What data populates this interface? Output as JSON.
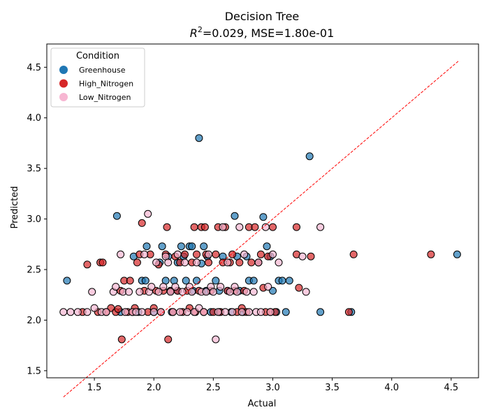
{
  "chart_data": {
    "type": "scatter",
    "title": "Decision Tree",
    "subtitle_parts": {
      "r_symbol": "R",
      "r_exp": "2",
      "rest": "=0.029, MSE=1.80e-01"
    },
    "xlabel": "Actual",
    "ylabel": "Predicted",
    "xlim": [
      1.1,
      4.73
    ],
    "ylim": [
      1.43,
      4.73
    ],
    "xticks": [
      1.5,
      2.0,
      2.5,
      3.0,
      3.5,
      4.0,
      4.5
    ],
    "xtick_labels": [
      "1.5",
      "2.0",
      "2.5",
      "3.0",
      "3.5",
      "4.0",
      "4.5"
    ],
    "yticks": [
      1.5,
      2.0,
      2.5,
      3.0,
      3.5,
      4.0,
      4.5
    ],
    "ytick_labels": [
      "1.5",
      "2.0",
      "2.5",
      "3.0",
      "3.5",
      "4.0",
      "4.5"
    ],
    "grid": false,
    "legend": {
      "title": "Condition",
      "placement": "upper left"
    },
    "reference_line": {
      "x": [
        1.24,
        4.56
      ],
      "y": [
        1.24,
        4.56
      ],
      "color": "#ff0000",
      "style": "dashed"
    },
    "series": [
      {
        "name": "Greenhouse",
        "color": "#1f77b4",
        "points": [
          [
            1.27,
            2.39
          ],
          [
            1.72,
            2.08
          ],
          [
            1.83,
            2.63
          ],
          [
            1.87,
            2.08
          ],
          [
            1.9,
            2.39
          ],
          [
            1.93,
            2.39
          ],
          [
            1.94,
            2.73
          ],
          [
            2.0,
            2.08
          ],
          [
            2.05,
            2.57
          ],
          [
            2.07,
            2.73
          ],
          [
            2.1,
            2.39
          ],
          [
            2.12,
            2.63
          ],
          [
            2.14,
            2.29
          ],
          [
            2.17,
            2.39
          ],
          [
            2.2,
            2.57
          ],
          [
            2.23,
            2.73
          ],
          [
            2.25,
            2.63
          ],
          [
            2.27,
            2.39
          ],
          [
            2.3,
            2.73
          ],
          [
            2.32,
            2.73
          ],
          [
            2.33,
            2.29
          ],
          [
            2.36,
            2.39
          ],
          [
            2.38,
            3.8
          ],
          [
            2.4,
            2.56
          ],
          [
            2.42,
            2.73
          ],
          [
            2.44,
            2.29
          ],
          [
            2.45,
            2.63
          ],
          [
            2.48,
            2.08
          ],
          [
            2.52,
            2.39
          ],
          [
            2.55,
            2.29
          ],
          [
            2.58,
            2.63
          ],
          [
            2.62,
            2.29
          ],
          [
            2.65,
            2.08
          ],
          [
            2.68,
            3.03
          ],
          [
            2.7,
            2.63
          ],
          [
            2.72,
            2.29
          ],
          [
            2.75,
            2.08
          ],
          [
            2.78,
            2.63
          ],
          [
            2.8,
            2.39
          ],
          [
            2.84,
            2.39
          ],
          [
            2.88,
            2.57
          ],
          [
            2.92,
            3.02
          ],
          [
            2.95,
            2.73
          ],
          [
            2.98,
            2.63
          ],
          [
            3.0,
            2.29
          ],
          [
            3.03,
            2.08
          ],
          [
            3.05,
            2.39
          ],
          [
            3.08,
            2.39
          ],
          [
            3.11,
            2.08
          ],
          [
            3.14,
            2.39
          ],
          [
            3.31,
            3.62
          ],
          [
            3.4,
            2.08
          ],
          [
            3.66,
            2.08
          ],
          [
            4.55,
            2.65
          ],
          [
            1.69,
            3.03
          ],
          [
            2.15,
            2.08
          ],
          [
            2.55,
            2.08
          ],
          [
            2.2,
            2.29
          ]
        ]
      },
      {
        "name": "High_Nitrogen",
        "color": "#d62728",
        "points": [
          [
            1.4,
            2.08
          ],
          [
            1.44,
            2.55
          ],
          [
            1.53,
            2.08
          ],
          [
            1.55,
            2.57
          ],
          [
            1.57,
            2.57
          ],
          [
            1.6,
            2.08
          ],
          [
            1.64,
            2.12
          ],
          [
            1.68,
            2.08
          ],
          [
            1.7,
            2.11
          ],
          [
            1.72,
            2.29
          ],
          [
            1.73,
            1.81
          ],
          [
            1.75,
            2.39
          ],
          [
            1.78,
            2.08
          ],
          [
            1.8,
            2.39
          ],
          [
            1.82,
            2.08
          ],
          [
            1.84,
            2.12
          ],
          [
            1.86,
            2.57
          ],
          [
            1.88,
            2.65
          ],
          [
            1.9,
            2.96
          ],
          [
            1.92,
            2.29
          ],
          [
            1.95,
            2.08
          ],
          [
            1.97,
            2.65
          ],
          [
            2.0,
            2.12
          ],
          [
            2.02,
            2.29
          ],
          [
            2.04,
            2.55
          ],
          [
            2.06,
            2.08
          ],
          [
            2.08,
            2.29
          ],
          [
            2.1,
            2.65
          ],
          [
            2.11,
            2.92
          ],
          [
            2.12,
            1.81
          ],
          [
            2.14,
            2.29
          ],
          [
            2.16,
            2.08
          ],
          [
            2.18,
            2.63
          ],
          [
            2.2,
            2.29
          ],
          [
            2.22,
            2.57
          ],
          [
            2.24,
            2.08
          ],
          [
            2.26,
            2.65
          ],
          [
            2.28,
            2.29
          ],
          [
            2.3,
            2.12
          ],
          [
            2.32,
            2.57
          ],
          [
            2.34,
            2.92
          ],
          [
            2.35,
            2.08
          ],
          [
            2.36,
            2.65
          ],
          [
            2.38,
            2.29
          ],
          [
            2.4,
            2.92
          ],
          [
            2.42,
            2.08
          ],
          [
            2.43,
            2.92
          ],
          [
            2.44,
            2.65
          ],
          [
            2.46,
            2.57
          ],
          [
            2.48,
            2.29
          ],
          [
            2.5,
            2.08
          ],
          [
            2.52,
            2.65
          ],
          [
            2.54,
            2.92
          ],
          [
            2.56,
            2.08
          ],
          [
            2.58,
            2.57
          ],
          [
            2.6,
            2.92
          ],
          [
            2.62,
            2.29
          ],
          [
            2.64,
            2.57
          ],
          [
            2.66,
            2.65
          ],
          [
            2.68,
            2.29
          ],
          [
            2.7,
            2.08
          ],
          [
            2.72,
            2.57
          ],
          [
            2.74,
            2.12
          ],
          [
            2.76,
            2.29
          ],
          [
            2.78,
            2.08
          ],
          [
            2.8,
            2.92
          ],
          [
            2.82,
            2.57
          ],
          [
            2.85,
            2.92
          ],
          [
            2.88,
            2.57
          ],
          [
            2.9,
            2.65
          ],
          [
            2.92,
            2.32
          ],
          [
            2.94,
            2.08
          ],
          [
            2.96,
            2.63
          ],
          [
            2.98,
            2.08
          ],
          [
            3.0,
            2.92
          ],
          [
            3.02,
            2.08
          ],
          [
            3.2,
            2.92
          ],
          [
            3.2,
            2.65
          ],
          [
            3.22,
            2.32
          ],
          [
            3.32,
            2.63
          ],
          [
            3.64,
            2.08
          ],
          [
            3.68,
            2.65
          ],
          [
            4.33,
            2.65
          ]
        ]
      },
      {
        "name": "Low_Nitrogen",
        "color": "#f7b6d2",
        "points": [
          [
            1.24,
            2.08
          ],
          [
            1.3,
            2.08
          ],
          [
            1.36,
            2.08
          ],
          [
            1.44,
            2.08
          ],
          [
            1.48,
            2.28
          ],
          [
            1.5,
            2.12
          ],
          [
            1.56,
            2.08
          ],
          [
            1.6,
            2.08
          ],
          [
            1.66,
            2.28
          ],
          [
            1.68,
            2.33
          ],
          [
            1.72,
            2.65
          ],
          [
            1.74,
            2.28
          ],
          [
            1.76,
            2.08
          ],
          [
            1.79,
            2.28
          ],
          [
            1.82,
            2.08
          ],
          [
            1.85,
            2.08
          ],
          [
            1.88,
            2.28
          ],
          [
            1.9,
            2.08
          ],
          [
            1.92,
            2.65
          ],
          [
            1.95,
            3.05
          ],
          [
            1.96,
            2.28
          ],
          [
            1.98,
            2.33
          ],
          [
            2.0,
            2.08
          ],
          [
            2.02,
            2.57
          ],
          [
            2.04,
            2.28
          ],
          [
            2.06,
            2.08
          ],
          [
            2.08,
            2.33
          ],
          [
            2.1,
            2.63
          ],
          [
            2.12,
            2.57
          ],
          [
            2.14,
            2.28
          ],
          [
            2.16,
            2.08
          ],
          [
            2.18,
            2.33
          ],
          [
            2.2,
            2.65
          ],
          [
            2.22,
            2.08
          ],
          [
            2.24,
            2.28
          ],
          [
            2.26,
            2.57
          ],
          [
            2.28,
            2.08
          ],
          [
            2.3,
            2.33
          ],
          [
            2.32,
            2.28
          ],
          [
            2.34,
            2.08
          ],
          [
            2.36,
            2.57
          ],
          [
            2.38,
            2.12
          ],
          [
            2.4,
            2.28
          ],
          [
            2.42,
            2.08
          ],
          [
            2.44,
            2.28
          ],
          [
            2.46,
            2.65
          ],
          [
            2.48,
            2.33
          ],
          [
            2.5,
            2.28
          ],
          [
            2.52,
            1.81
          ],
          [
            2.54,
            2.08
          ],
          [
            2.56,
            2.33
          ],
          [
            2.58,
            2.92
          ],
          [
            2.6,
            2.08
          ],
          [
            2.62,
            2.57
          ],
          [
            2.64,
            2.28
          ],
          [
            2.66,
            2.08
          ],
          [
            2.68,
            2.33
          ],
          [
            2.7,
            2.28
          ],
          [
            2.72,
            2.92
          ],
          [
            2.74,
            2.08
          ],
          [
            2.76,
            2.65
          ],
          [
            2.78,
            2.28
          ],
          [
            2.8,
            2.08
          ],
          [
            2.84,
            2.28
          ],
          [
            2.86,
            2.08
          ],
          [
            2.88,
            2.57
          ],
          [
            2.9,
            2.08
          ],
          [
            2.94,
            2.92
          ],
          [
            2.96,
            2.33
          ],
          [
            2.98,
            2.08
          ],
          [
            3.0,
            2.65
          ],
          [
            3.05,
            2.57
          ],
          [
            3.25,
            2.63
          ],
          [
            3.28,
            2.28
          ],
          [
            3.4,
            2.92
          ]
        ]
      }
    ]
  }
}
